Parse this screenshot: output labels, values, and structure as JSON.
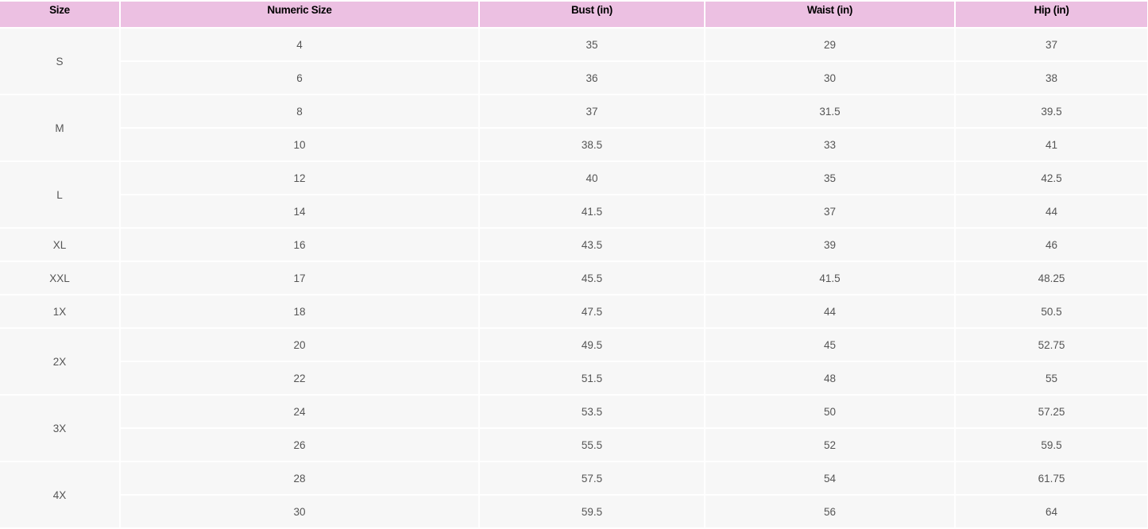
{
  "headers": [
    "Size",
    "Numeric Size",
    "Bust (in)",
    "Waist (in)",
    "Hip (in)"
  ],
  "groups": [
    {
      "size": "S",
      "rows": [
        [
          "4",
          "35",
          "29",
          "37"
        ],
        [
          "6",
          "36",
          "30",
          "38"
        ]
      ]
    },
    {
      "size": "M",
      "rows": [
        [
          "8",
          "37",
          "31.5",
          "39.5"
        ],
        [
          "10",
          "38.5",
          "33",
          "41"
        ]
      ]
    },
    {
      "size": "L",
      "rows": [
        [
          "12",
          "40",
          "35",
          "42.5"
        ],
        [
          "14",
          "41.5",
          "37",
          "44"
        ]
      ]
    },
    {
      "size": "XL",
      "rows": [
        [
          "16",
          "43.5",
          "39",
          "46"
        ]
      ]
    },
    {
      "size": "XXL",
      "rows": [
        [
          "17",
          "45.5",
          "41.5",
          "48.25"
        ]
      ]
    },
    {
      "size": "1X",
      "rows": [
        [
          "18",
          "47.5",
          "44",
          "50.5"
        ]
      ]
    },
    {
      "size": "2X",
      "rows": [
        [
          "20",
          "49.5",
          "45",
          "52.75"
        ],
        [
          "22",
          "51.5",
          "48",
          "55"
        ]
      ]
    },
    {
      "size": "3X",
      "rows": [
        [
          "24",
          "53.5",
          "50",
          "57.25"
        ],
        [
          "26",
          "55.5",
          "52",
          "59.5"
        ]
      ]
    },
    {
      "size": "4X",
      "rows": [
        [
          "28",
          "57.5",
          "54",
          "61.75"
        ],
        [
          "30",
          "59.5",
          "56",
          "64"
        ]
      ]
    }
  ],
  "colors": {
    "header_bg": "#ecc0e2",
    "cell_bg": "#f7f7f7"
  }
}
